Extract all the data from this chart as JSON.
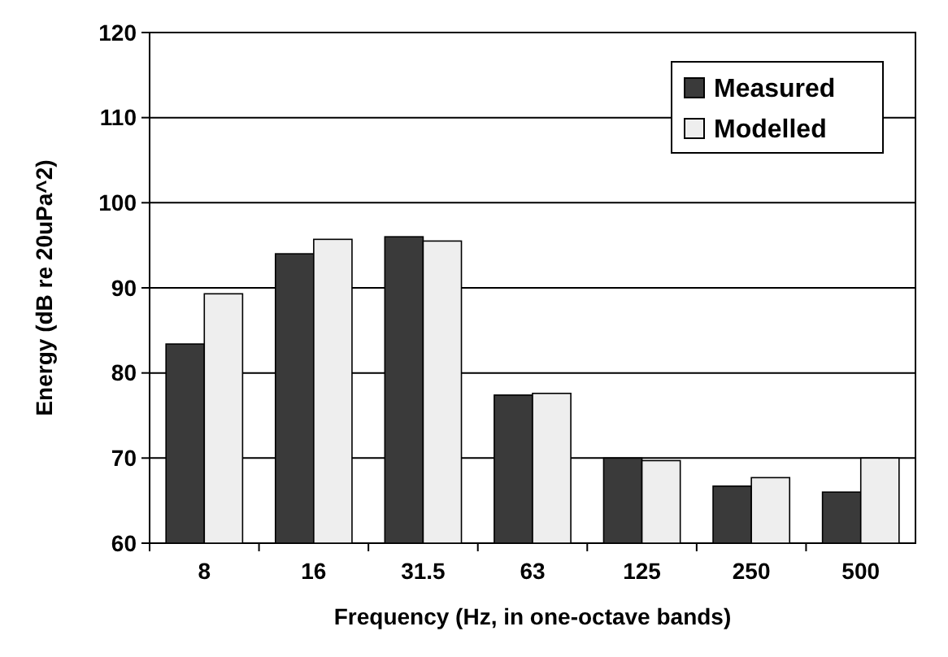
{
  "chart_data": {
    "type": "bar",
    "xlabel": "Frequency (Hz, in one-octave bands)",
    "ylabel": "Energy (dB re 20uPa^2)",
    "categories": [
      "8",
      "16",
      "31.5",
      "63",
      "125",
      "250",
      "500"
    ],
    "series": [
      {
        "name": "Measured",
        "color": "#3a3a3a",
        "values": [
          83.4,
          94,
          96,
          77.4,
          70,
          66.7,
          66
        ]
      },
      {
        "name": "Modelled",
        "color": "#eeeeee",
        "values": [
          89.3,
          95.7,
          95.5,
          77.6,
          69.7,
          67.7,
          70
        ]
      }
    ],
    "ylim": [
      60,
      120
    ],
    "yticks": [
      60,
      70,
      80,
      90,
      100,
      110,
      120
    ],
    "grid": "y",
    "legend": "top right"
  }
}
